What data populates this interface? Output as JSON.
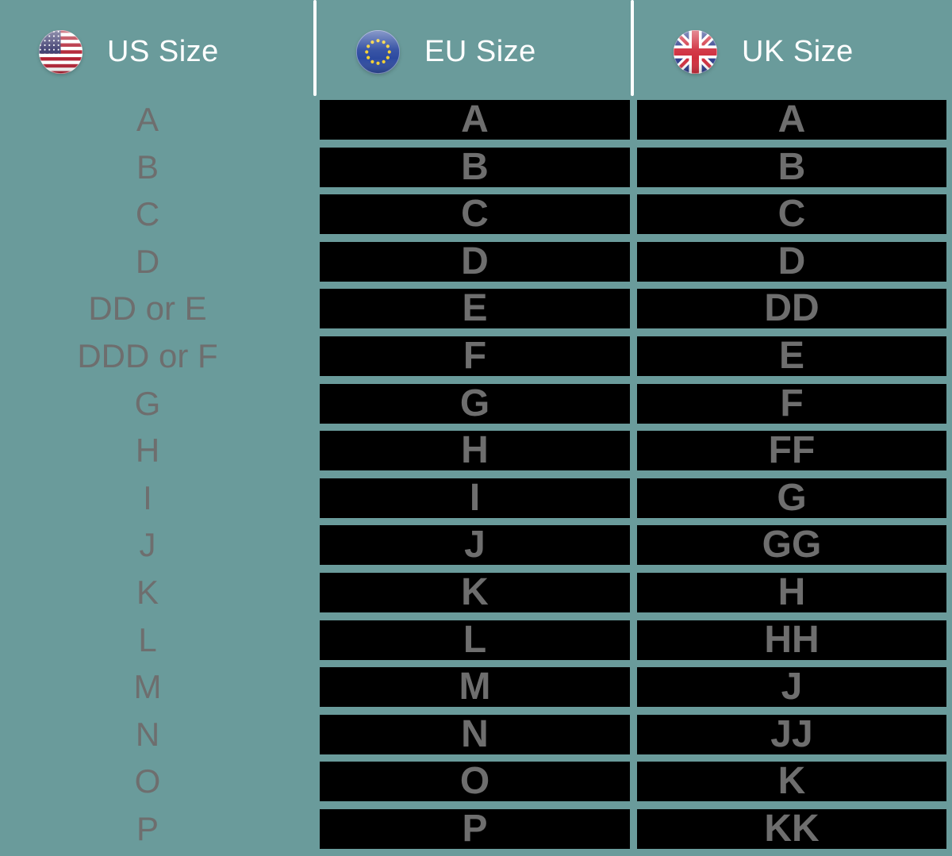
{
  "header": {
    "columns": [
      {
        "label": "US Size",
        "flag": "us-flag-icon"
      },
      {
        "label": "EU Size",
        "flag": "eu-flag-icon"
      },
      {
        "label": "UK Size",
        "flag": "uk-flag-icon"
      }
    ]
  },
  "chart_data": {
    "type": "table",
    "columns": [
      "US Size",
      "EU Size",
      "UK Size"
    ],
    "rows": [
      [
        "A",
        "A",
        "A"
      ],
      [
        "B",
        "B",
        "B"
      ],
      [
        "C",
        "C",
        "C"
      ],
      [
        "D",
        "D",
        "D"
      ],
      [
        "DD or E",
        "E",
        "DD"
      ],
      [
        "DDD or F",
        "F",
        "E"
      ],
      [
        "G",
        "G",
        "F"
      ],
      [
        "H",
        "H",
        "FF"
      ],
      [
        "I",
        "I",
        "G"
      ],
      [
        "J",
        "J",
        "GG"
      ],
      [
        "K",
        "K",
        "H"
      ],
      [
        "L",
        "L",
        "HH"
      ],
      [
        "M",
        "M",
        "J"
      ],
      [
        "N",
        "N",
        "JJ"
      ],
      [
        "O",
        "O",
        "K"
      ],
      [
        "P",
        "P",
        "KK"
      ]
    ]
  },
  "colors": {
    "background": "#6a9b9b",
    "cell_background": "#000000",
    "size_text": "#6e6e6e",
    "header_text": "#ffffff",
    "divider": "#ffffff",
    "flag_us_red": "#b22234",
    "flag_us_blue": "#3c3b6e",
    "flag_eu_blue": "#2c4aa0",
    "flag_eu_star": "#f8d12e",
    "flag_uk_blue": "#2e3e8c",
    "flag_uk_red": "#d02e3e"
  }
}
